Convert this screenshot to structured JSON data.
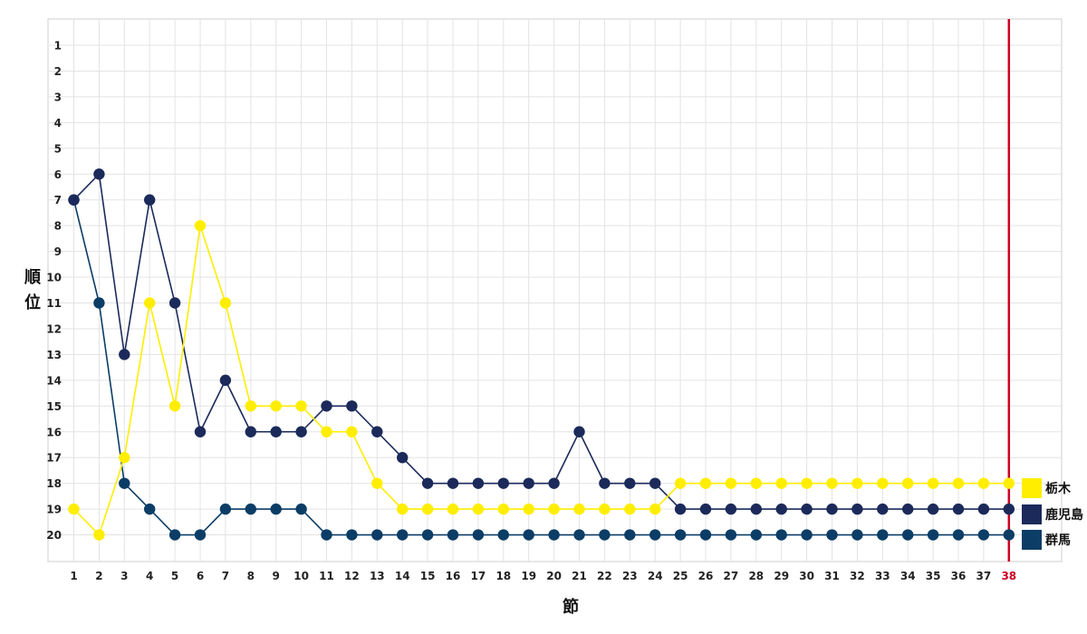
{
  "chart_data": {
    "type": "line",
    "xlabel": "節",
    "ylabel": "順位",
    "x": [
      1,
      2,
      3,
      4,
      5,
      6,
      7,
      8,
      9,
      10,
      11,
      12,
      13,
      14,
      15,
      16,
      17,
      18,
      19,
      20,
      21,
      22,
      23,
      24,
      25,
      26,
      27,
      28,
      29,
      30,
      31,
      32,
      33,
      34,
      35,
      36,
      37,
      38
    ],
    "ylim": [
      1,
      20
    ],
    "y_inverted": true,
    "grid": true,
    "current_round": 38,
    "marker_color": "#cc0022",
    "series": [
      {
        "name": "群馬",
        "color": "#0b3d66",
        "values": [
          7,
          11,
          18,
          19,
          20,
          20,
          19,
          19,
          19,
          19,
          20,
          20,
          20,
          20,
          20,
          20,
          20,
          20,
          20,
          20,
          20,
          20,
          20,
          20,
          20,
          20,
          20,
          20,
          20,
          20,
          20,
          20,
          20,
          20,
          20,
          20,
          20,
          20
        ]
      },
      {
        "name": "鹿児島",
        "color": "#1b2a5a",
        "values": [
          7,
          6,
          13,
          7,
          11,
          16,
          14,
          16,
          16,
          16,
          15,
          15,
          16,
          17,
          18,
          18,
          18,
          18,
          18,
          18,
          16,
          18,
          18,
          18,
          19,
          19,
          19,
          19,
          19,
          19,
          19,
          19,
          19,
          19,
          19,
          19,
          19,
          19
        ]
      },
      {
        "name": "栃木",
        "color": "#ffee00",
        "values": [
          19,
          20,
          17,
          11,
          15,
          8,
          11,
          15,
          15,
          15,
          16,
          16,
          18,
          19,
          19,
          19,
          19,
          19,
          19,
          19,
          19,
          19,
          19,
          19,
          18,
          18,
          18,
          18,
          18,
          18,
          18,
          18,
          18,
          18,
          18,
          18,
          18,
          18
        ]
      }
    ],
    "legend": [
      {
        "name": "栃木",
        "color": "#ffee00"
      },
      {
        "name": "鹿児島",
        "color": "#1b2a5a"
      },
      {
        "name": "群馬",
        "color": "#0b3d66"
      }
    ]
  }
}
